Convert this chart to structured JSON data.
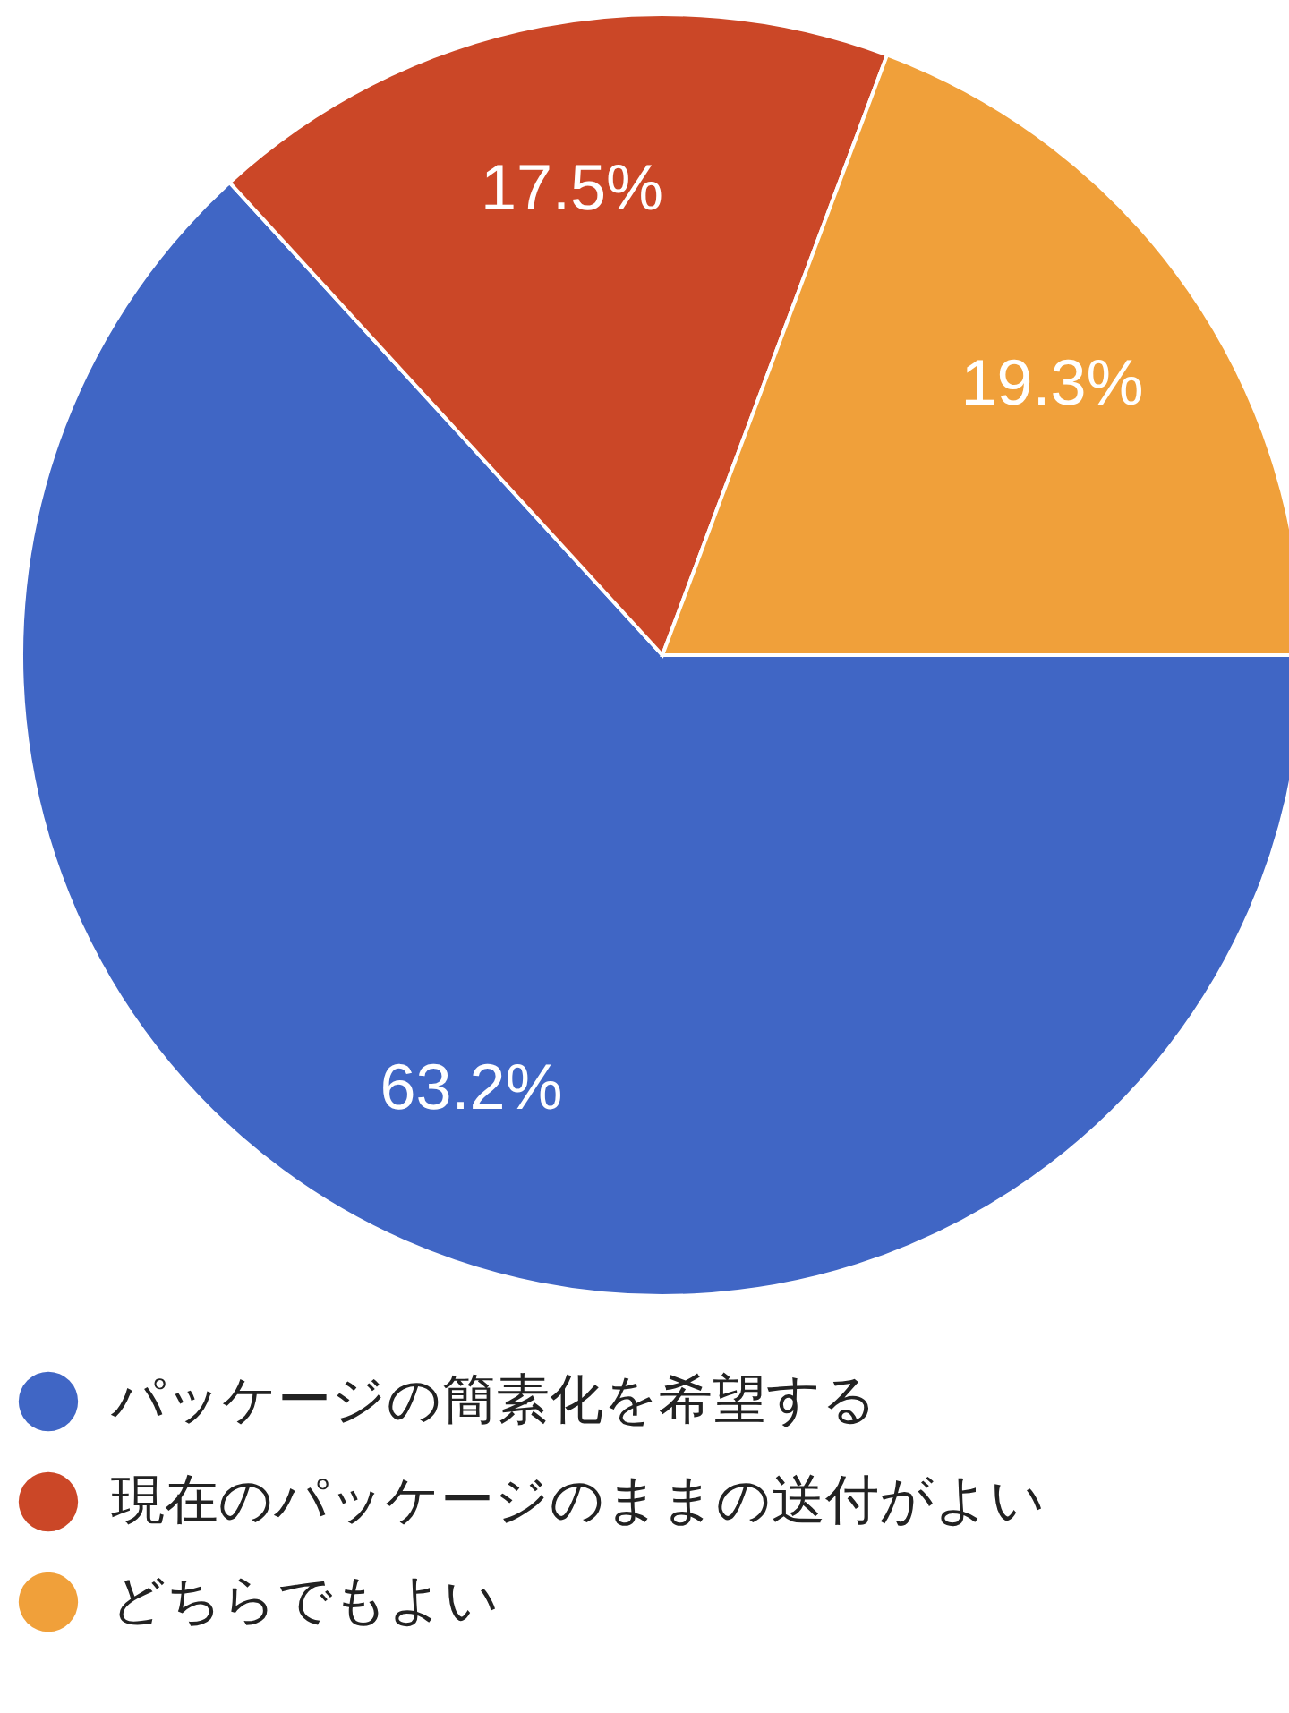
{
  "chart_data": {
    "type": "pie",
    "categories": [
      "パッケージの簡素化を希望する",
      "現在のパッケージのままの送付がよい",
      "どちらでもよい"
    ],
    "values": [
      63.2,
      17.5,
      19.3
    ],
    "colors": [
      "#4066c5",
      "#cb4727",
      "#f0a03a"
    ],
    "value_labels": [
      "63.2%",
      "17.5%",
      "19.3%"
    ],
    "legend": "bottom left"
  }
}
